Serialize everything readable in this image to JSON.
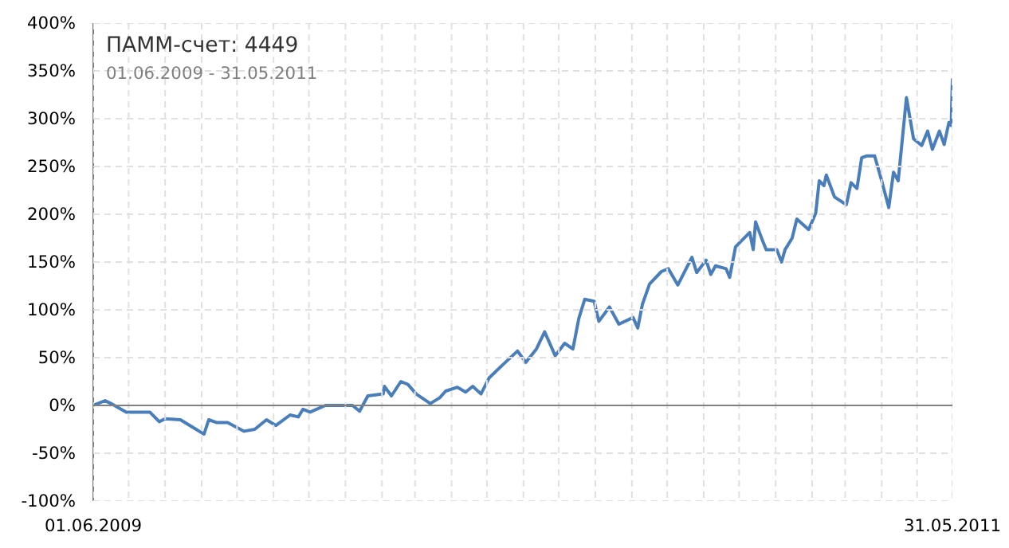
{
  "chart_data": {
    "type": "line",
    "title": "ПАММ-счет: 4449",
    "subtitle": "01.06.2009 - 31.05.2011",
    "x": [
      "2009-06-01",
      "2009-06-11",
      "2009-06-16",
      "2009-06-29",
      "2009-07-19",
      "2009-07-27",
      "2009-08-01",
      "2009-08-14",
      "2009-08-22",
      "2009-09-03",
      "2009-09-07",
      "2009-09-14",
      "2009-09-23",
      "2009-10-07",
      "2009-10-16",
      "2009-10-26",
      "2009-11-03",
      "2009-11-15",
      "2009-11-22",
      "2009-11-26",
      "2009-12-02",
      "2009-12-15",
      "2010-01-07",
      "2010-01-13",
      "2010-01-20",
      "2010-02-02",
      "2010-02-03",
      "2010-02-09",
      "2010-02-17",
      "2010-02-23",
      "2010-03-02",
      "2010-03-14",
      "2010-03-22",
      "2010-03-27",
      "2010-04-06",
      "2010-04-13",
      "2010-04-19",
      "2010-04-26",
      "2010-05-03",
      "2010-05-14",
      "2010-05-27",
      "2010-06-03",
      "2010-06-12",
      "2010-06-19",
      "2010-06-28",
      "2010-07-06",
      "2010-07-13",
      "2010-07-18",
      "2010-07-23",
      "2010-07-31",
      "2010-08-04",
      "2010-08-13",
      "2010-08-21",
      "2010-09-02",
      "2010-09-06",
      "2010-09-10",
      "2010-09-16",
      "2010-09-26",
      "2010-10-02",
      "2010-10-10",
      "2010-10-22",
      "2010-10-26",
      "2010-11-03",
      "2010-11-07",
      "2010-11-11",
      "2010-11-20",
      "2010-11-23",
      "2010-11-28",
      "2010-12-10",
      "2010-12-13",
      "2010-12-15",
      "2010-12-21",
      "2010-12-24",
      "2011-01-02",
      "2011-01-06",
      "2011-01-09",
      "2011-01-15",
      "2011-01-19",
      "2011-01-29",
      "2011-02-04",
      "2011-02-07",
      "2011-02-11",
      "2011-02-13",
      "2011-02-20",
      "2011-03-02",
      "2011-03-06",
      "2011-03-11",
      "2011-03-15",
      "2011-03-19",
      "2011-03-26",
      "2011-04-01",
      "2011-04-07",
      "2011-04-11",
      "2011-04-15",
      "2011-04-22",
      "2011-04-28",
      "2011-05-05",
      "2011-05-10",
      "2011-05-14",
      "2011-05-20",
      "2011-05-24",
      "2011-05-28",
      "2011-05-30",
      "2011-05-31"
    ],
    "series": [
      {
        "color": "#4a7ebb",
        "values": [
          0,
          5,
          2,
          -7,
          -7,
          -17,
          -14,
          -15,
          -21,
          -30,
          -15,
          -18,
          -18,
          -27,
          -25,
          -15,
          -21,
          -10,
          -12,
          -4,
          -7,
          0,
          0,
          -6,
          10,
          12,
          20,
          10,
          25,
          22,
          12,
          2,
          8,
          15,
          19,
          14,
          20,
          12,
          29,
          42,
          57,
          45,
          59,
          77,
          52,
          65,
          59,
          91,
          111,
          109,
          88,
          103,
          85,
          92,
          81,
          106,
          127,
          140,
          143,
          126,
          155,
          139,
          152,
          137,
          146,
          143,
          134,
          166,
          181,
          163,
          192,
          172,
          163,
          163,
          150,
          163,
          175,
          195,
          184,
          201,
          235,
          230,
          241,
          218,
          210,
          233,
          227,
          259,
          261,
          261,
          235,
          207,
          244,
          235,
          322,
          279,
          272,
          287,
          268,
          287,
          273,
          296,
          293,
          342
        ]
      }
    ],
    "xlim": [
      "2009-06-01",
      "2011-05-31"
    ],
    "xticks": [
      {
        "value": "2009-06-01",
        "label": "01.06.2009"
      },
      {
        "value": "2009-07-01",
        "label": null
      },
      {
        "value": "2009-08-01",
        "label": null
      },
      {
        "value": "2009-09-01",
        "label": null
      },
      {
        "value": "2009-10-01",
        "label": null
      },
      {
        "value": "2009-11-01",
        "label": null
      },
      {
        "value": "2009-12-01",
        "label": null
      },
      {
        "value": "2010-01-01",
        "label": null
      },
      {
        "value": "2010-02-01",
        "label": null
      },
      {
        "value": "2010-03-01",
        "label": null
      },
      {
        "value": "2010-04-01",
        "label": null
      },
      {
        "value": "2010-05-01",
        "label": null
      },
      {
        "value": "2010-06-01",
        "label": null
      },
      {
        "value": "2010-07-01",
        "label": null
      },
      {
        "value": "2010-08-01",
        "label": null
      },
      {
        "value": "2010-09-01",
        "label": null
      },
      {
        "value": "2010-10-01",
        "label": null
      },
      {
        "value": "2010-11-01",
        "label": null
      },
      {
        "value": "2010-12-01",
        "label": null
      },
      {
        "value": "2011-01-01",
        "label": null
      },
      {
        "value": "2011-02-01",
        "label": null
      },
      {
        "value": "2011-03-01",
        "label": null
      },
      {
        "value": "2011-04-01",
        "label": null
      },
      {
        "value": "2011-05-01",
        "label": null
      },
      {
        "value": "2011-05-31",
        "label": "31.05.2011"
      }
    ],
    "ylim": [
      -100,
      400
    ],
    "yticks": [
      {
        "value": -100,
        "label": "-100%"
      },
      {
        "value": -50,
        "label": "-50%"
      },
      {
        "value": 0,
        "label": "0%"
      },
      {
        "value": 50,
        "label": "50%"
      },
      {
        "value": 100,
        "label": "100%"
      },
      {
        "value": 150,
        "label": "150%"
      },
      {
        "value": 200,
        "label": "200%"
      },
      {
        "value": 250,
        "label": "250%"
      },
      {
        "value": 300,
        "label": "300%"
      },
      {
        "value": 350,
        "label": "350%"
      },
      {
        "value": 400,
        "label": "400%"
      }
    ],
    "ref_lines": [
      {
        "axis": "y",
        "value": 0,
        "color": "#808080"
      }
    ],
    "grid": true,
    "marker": "none",
    "line_style": "solid"
  }
}
